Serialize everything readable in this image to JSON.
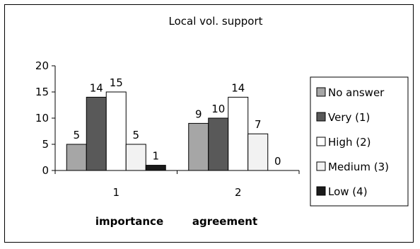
{
  "chart_data": {
    "type": "bar",
    "title": "Local vol. support",
    "categories": [
      "1",
      "2"
    ],
    "category_sublabels": [
      "importance",
      "agreement"
    ],
    "ylim": [
      0,
      20
    ],
    "yticks": [
      0,
      5,
      10,
      15,
      20
    ],
    "grid": false,
    "legend_position": "right",
    "series": [
      {
        "name": "No answer",
        "color": "#a6a6a6",
        "values": [
          5,
          9
        ]
      },
      {
        "name": "Very (1)",
        "color": "#595959",
        "values": [
          14,
          10
        ]
      },
      {
        "name": "High (2)",
        "color": "#ffffff",
        "values": [
          15,
          14
        ]
      },
      {
        "name": "Medium (3)",
        "color": "#f2f2f2",
        "values": [
          5,
          7
        ]
      },
      {
        "name": "Low (4)",
        "color": "#1a1a1a",
        "values": [
          1,
          0
        ]
      }
    ]
  }
}
